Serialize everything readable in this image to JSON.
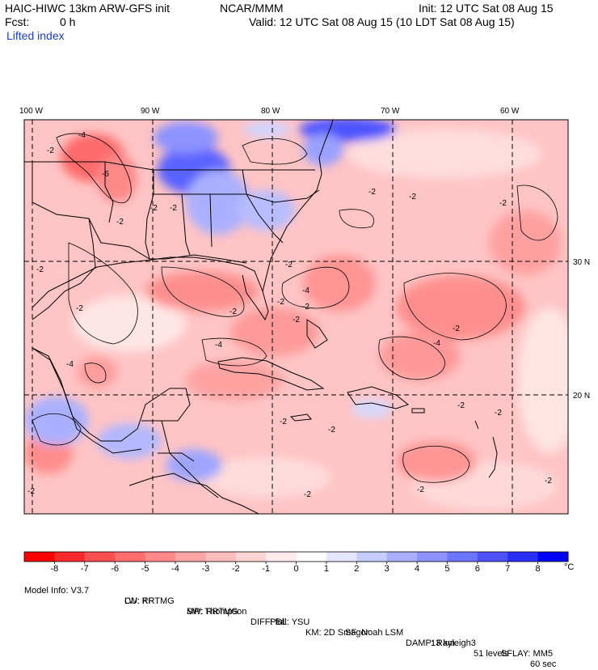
{
  "header": {
    "title": "HAIC-HIWC 13km ARW-GFS init",
    "center": "NCAR/MMM",
    "init": "Init: 12 UTC Sat 08 Aug 15",
    "fcst_label": "Fcst:",
    "fcst_value": "0 h",
    "valid": "Valid: 12 UTC Sat 08 Aug 15 (10 LDT Sat 08 Aug 15)",
    "field": "Lifted index"
  },
  "map": {
    "lon_labels": [
      "100 W",
      "90 W",
      "80 W",
      "70 W",
      "60 W"
    ],
    "lat_labels": [
      "30 N",
      "20 N"
    ],
    "contour_labels": [
      "-4",
      "-2",
      "-6",
      "-2",
      "-2",
      "-2",
      "-2",
      "-2",
      "-2",
      "-2",
      "-4",
      "-2",
      "-2",
      "-2",
      "-4",
      "-4",
      "-2",
      "-2",
      "-4",
      "-2",
      "-2",
      "-2",
      "-2",
      "-2",
      "-2",
      "-2",
      "-2",
      "-2",
      "-2"
    ]
  },
  "colorbar": {
    "labels": [
      "-8",
      "-7",
      "-6",
      "-5",
      "-4",
      "-3",
      "-2",
      "-1",
      "0",
      "1",
      "2",
      "3",
      "4",
      "5",
      "6",
      "7",
      "8"
    ],
    "unit": "°C",
    "colors": [
      "#ff0000",
      "#ff2a2a",
      "#ff4f4f",
      "#ff6e6e",
      "#ff8a8a",
      "#ffa5a5",
      "#ffbcbc",
      "#ffd4d4",
      "#ffebeb",
      "#ffffff",
      "#e4e6ff",
      "#c7ccff",
      "#aab0ff",
      "#8c93ff",
      "#6d74ff",
      "#4c52ff",
      "#2a2fff",
      "#0000ff"
    ]
  },
  "footer": {
    "line1": [
      {
        "label": "Model Info: V3.7"
      },
      {
        "label": "CU: KF"
      },
      {
        "label": "MP: Thompson"
      },
      {
        "label": "PBL: YSU"
      },
      {
        "label": "SF: Noah LSM"
      },
      {
        "label": "13 km"
      },
      {
        "label": "51 levels"
      },
      {
        "label": "60 sec"
      }
    ],
    "line2": [
      {
        "label": "LW: RRTMG"
      },
      {
        "label": "SW: RRTMG"
      },
      {
        "label": "DIFF: full"
      },
      {
        "label": "KM: 2D Smagor"
      },
      {
        "label": "DAMP: Rayleigh3"
      },
      {
        "label": "SFLAY: MM5"
      }
    ]
  }
}
